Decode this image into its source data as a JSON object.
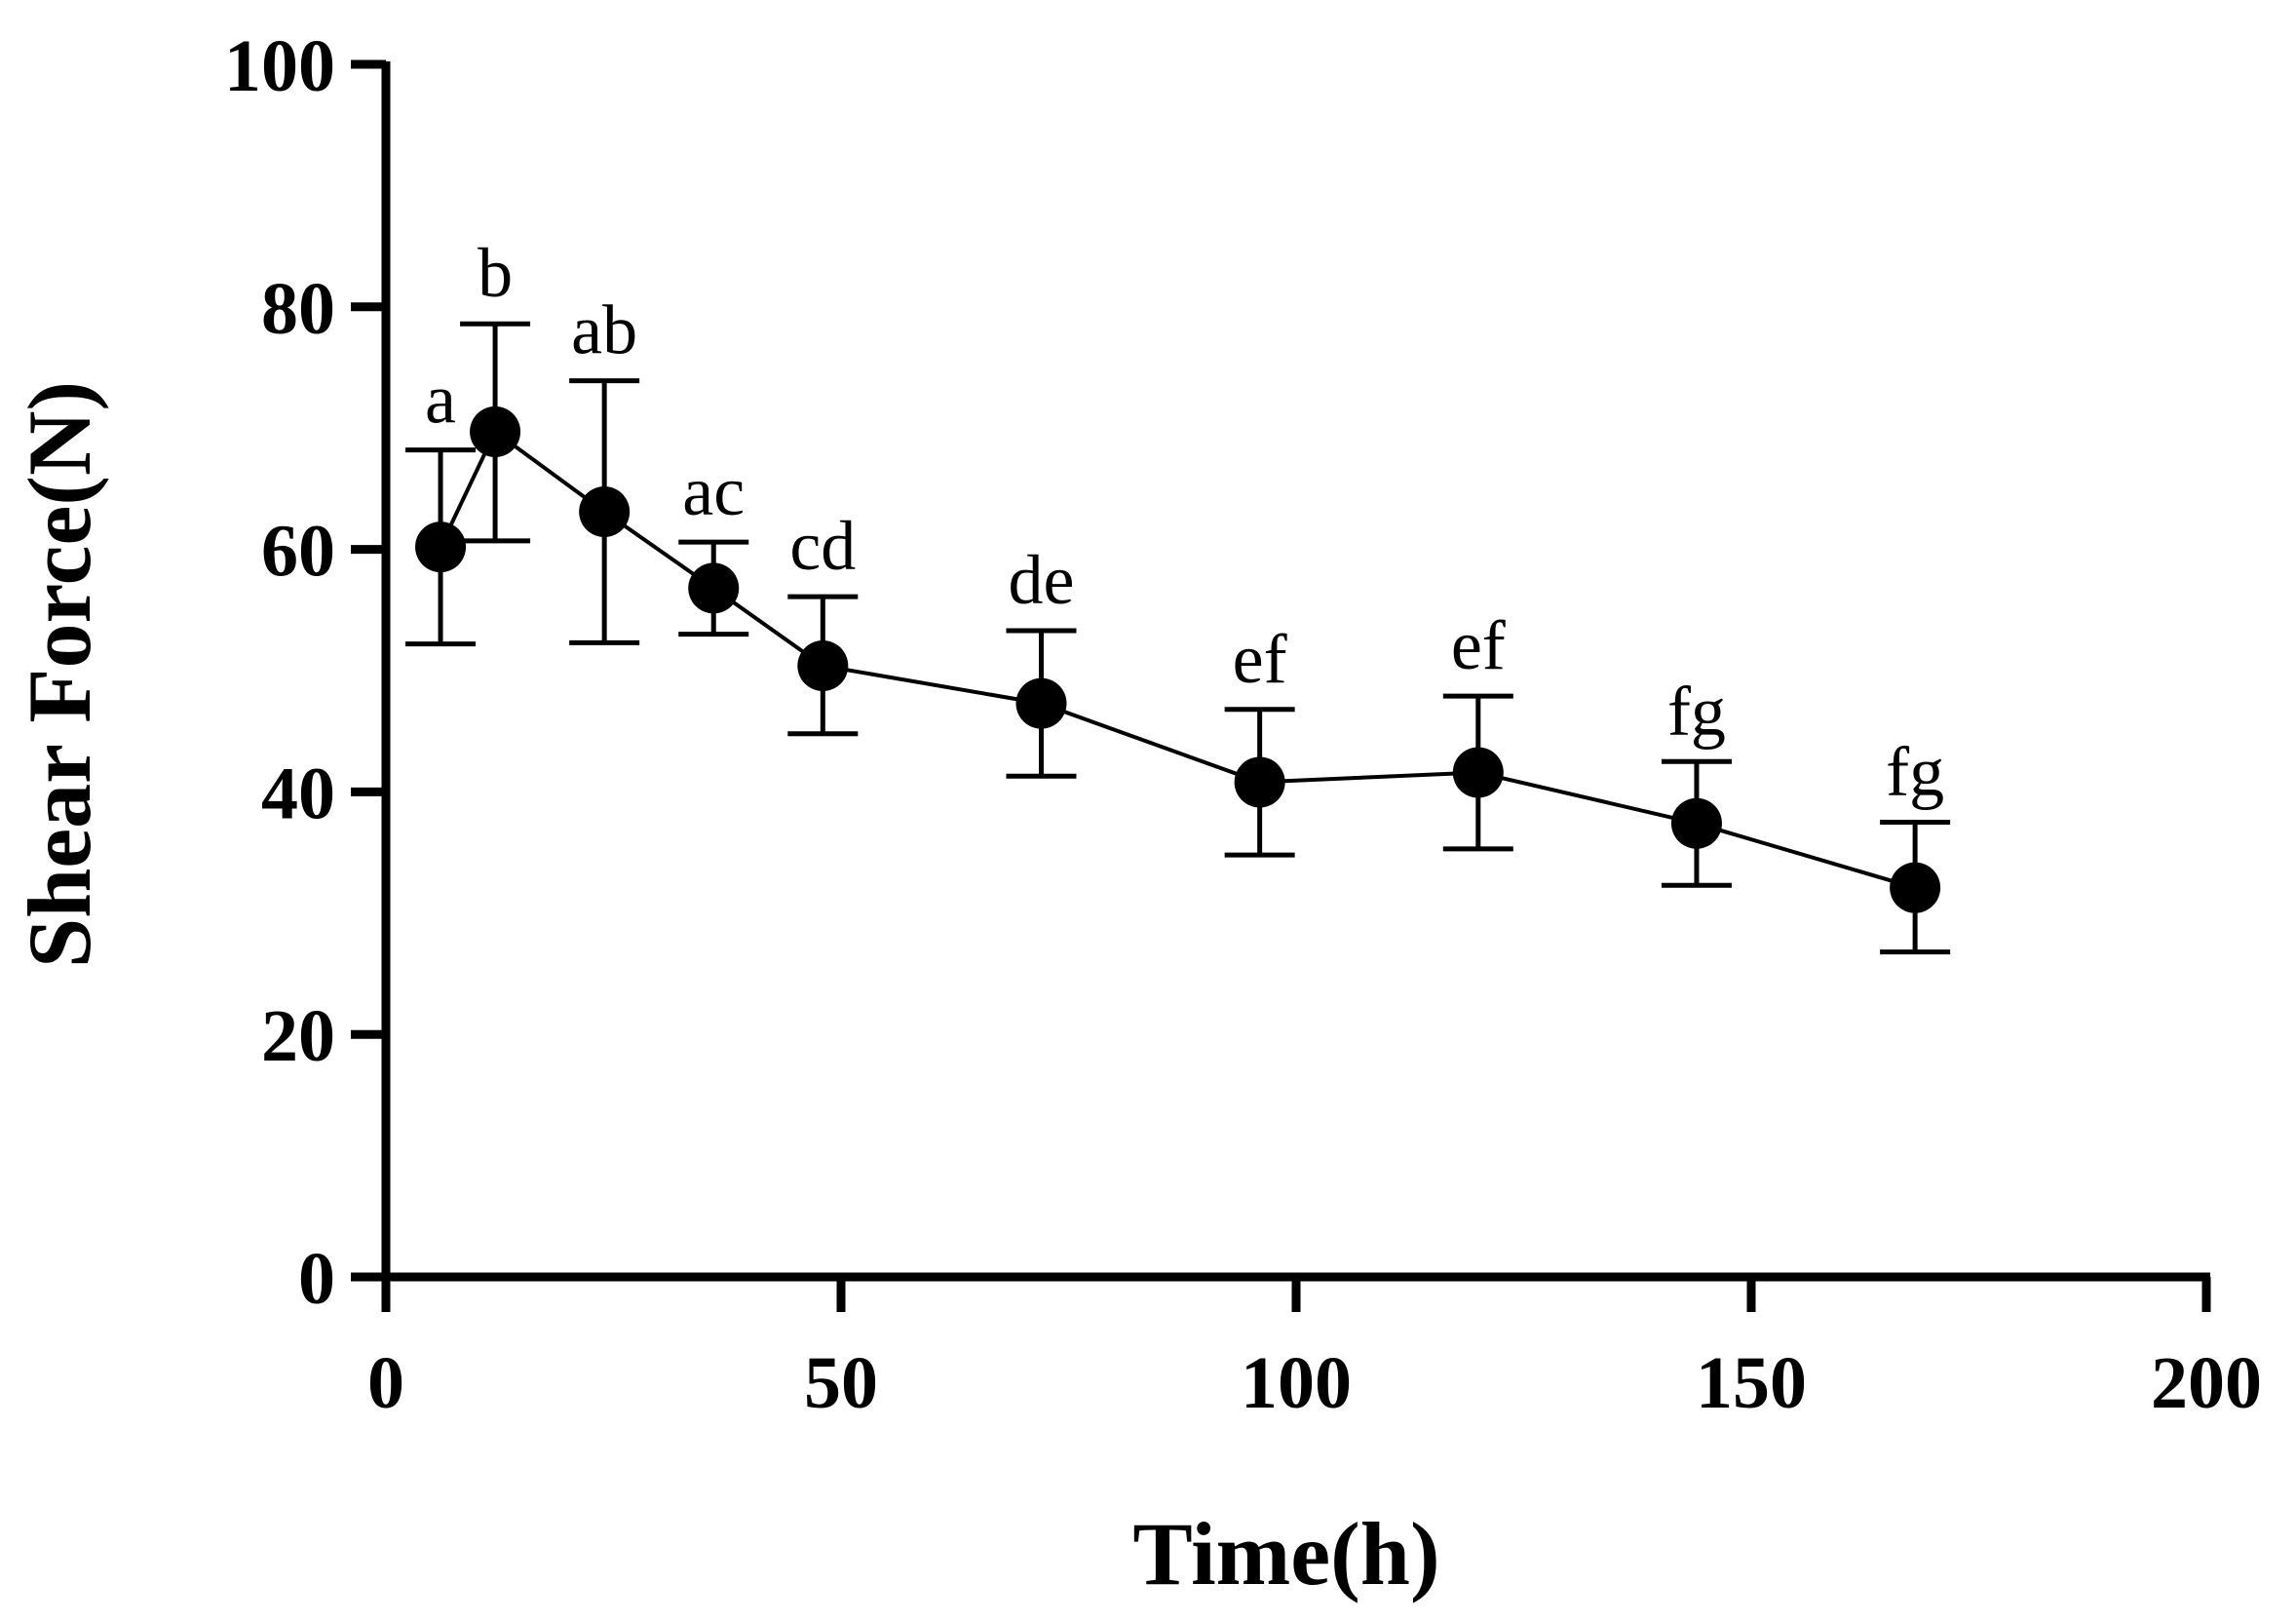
{
  "chart_data": {
    "type": "line",
    "title": "",
    "xlabel": "Time(h)",
    "ylabel": "Shear Force(N)",
    "xlim": [
      0,
      200
    ],
    "ylim": [
      0,
      100
    ],
    "xticks": [
      "0",
      "50",
      "100",
      "150",
      "200"
    ],
    "yticks": [
      "0",
      "20",
      "40",
      "60",
      "80",
      "100"
    ],
    "grid": false,
    "series": [
      {
        "name": "Shear Force",
        "x": [
          6,
          12,
          24,
          36,
          48,
          72,
          96,
          120,
          144,
          168
        ],
        "y": [
          60.2,
          69.7,
          63.1,
          56.8,
          50.4,
          47.3,
          40.8,
          41.6,
          37.4,
          32.1
        ],
        "err_upper": [
          68.2,
          78.6,
          73.9,
          60.6,
          56.1,
          53.3,
          46.8,
          47.9,
          42.5,
          37.5
        ],
        "err_lower": [
          52.2,
          60.7,
          52.3,
          53.0,
          44.8,
          41.3,
          34.8,
          35.3,
          32.3,
          26.8
        ],
        "labels": [
          "a",
          "b",
          "ab",
          "ac",
          "cd",
          "de",
          "ef",
          "ef",
          "fg",
          "fg"
        ]
      }
    ]
  }
}
